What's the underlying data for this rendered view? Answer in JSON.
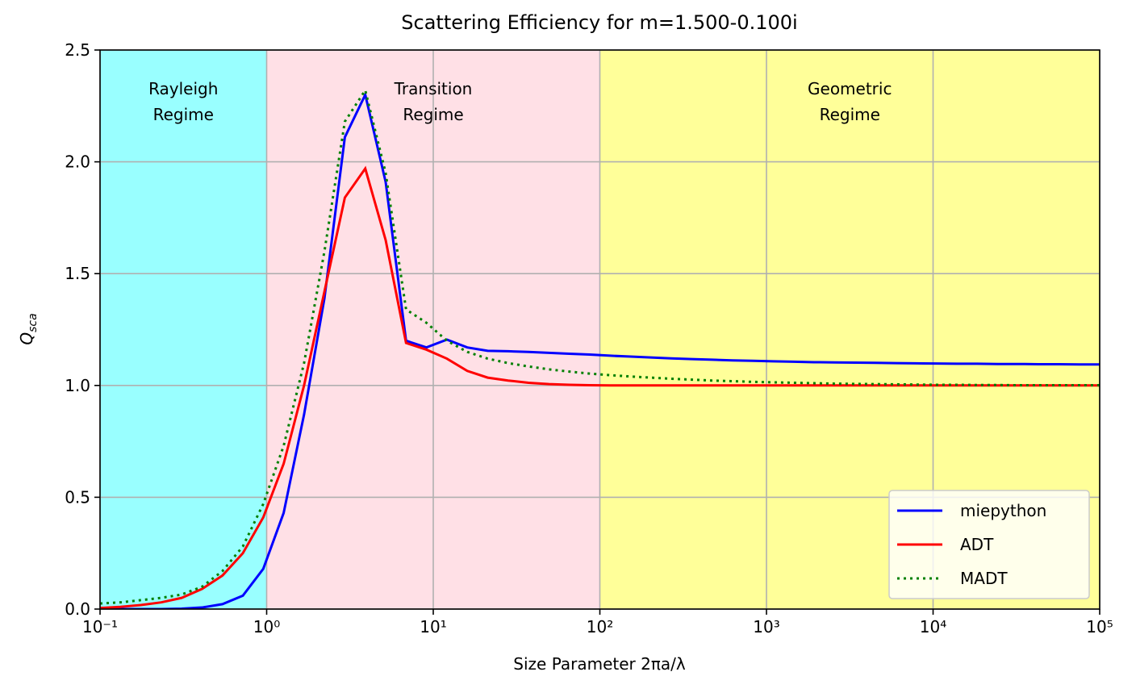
{
  "chart_data": {
    "type": "line",
    "title": "Scattering Efficiency for m=1.500-0.100i",
    "xlabel": "Size Parameter 2πa/λ",
    "ylabel": {
      "main": "Q",
      "sub": "sca"
    },
    "xscale": "log",
    "grid": true,
    "legend": "lower right",
    "xlim": [
      0.1,
      100000
    ],
    "ylim": [
      0,
      2.5
    ],
    "xticks": [
      {
        "value": 0.1,
        "label": "10⁻¹"
      },
      {
        "value": 1,
        "label": "10⁰"
      },
      {
        "value": 10,
        "label": "10¹"
      },
      {
        "value": 100,
        "label": "10²"
      },
      {
        "value": 1000,
        "label": "10³"
      },
      {
        "value": 10000,
        "label": "10⁴"
      },
      {
        "value": 100000,
        "label": "10⁵"
      }
    ],
    "yticks": [
      {
        "value": 0,
        "label": "0.0"
      },
      0.5,
      {
        "value": 1,
        "label": "1.0"
      },
      1.5,
      {
        "value": 2,
        "label": "2.0"
      },
      2.5
    ],
    "regions": [
      {
        "range": [
          0.1,
          1
        ],
        "color": "#99ffff",
        "label": [
          "Rayleigh",
          "Regime"
        ]
      },
      {
        "range": [
          1,
          100
        ],
        "color": "#ffe0e6",
        "label": [
          "Transition",
          "Regime"
        ]
      },
      {
        "range": [
          100,
          100000
        ],
        "color": "#ffff99",
        "label": [
          "Geometric",
          "Regime"
        ]
      }
    ],
    "x": [
      0.1,
      0.1326,
      0.1758,
      0.233,
      0.3089,
      0.4095,
      0.5429,
      0.7197,
      0.9541,
      1.265,
      1.677,
      2.223,
      2.947,
      3.907,
      5.179,
      6.866,
      9.103,
      12.07,
      16.0,
      21.21,
      28.12,
      37.28,
      49.42,
      65.51,
      86.85,
      115.1,
      152.6,
      202.4,
      268.3,
      355.6,
      471.5,
      625.1,
      828.6,
      1099,
      1456,
      1931,
      2560,
      3393,
      4498,
      5964,
      7906,
      10481,
      13895,
      18421,
      24421,
      32375,
      42919,
      56899,
      75431,
      100000
    ],
    "series": [
      {
        "name": "miepython",
        "color": "#0000ff",
        "linestyle": "solid",
        "values": [
          0,
          0,
          0,
          0,
          0.002,
          0.007,
          0.022,
          0.06,
          0.18,
          0.43,
          0.87,
          1.39,
          2.11,
          2.3,
          1.91,
          1.2,
          1.17,
          1.205,
          1.17,
          1.155,
          1.153,
          1.15,
          1.146,
          1.142,
          1.138,
          1.133,
          1.129,
          1.125,
          1.121,
          1.118,
          1.115,
          1.112,
          1.11,
          1.108,
          1.106,
          1.104,
          1.103,
          1.102,
          1.101,
          1.1,
          1.099,
          1.098,
          1.097,
          1.097,
          1.096,
          1.096,
          1.095,
          1.095,
          1.094,
          1.094
        ]
      },
      {
        "name": "ADT",
        "color": "#ff0000",
        "linestyle": "solid",
        "values": [
          0.005,
          0.01,
          0.018,
          0.03,
          0.05,
          0.09,
          0.15,
          0.25,
          0.41,
          0.65,
          1.0,
          1.42,
          1.84,
          1.97,
          1.65,
          1.19,
          1.16,
          1.12,
          1.065,
          1.035,
          1.022,
          1.012,
          1.006,
          1.003,
          1.001,
          1,
          1,
          1,
          1,
          1,
          1,
          1,
          1,
          1,
          1,
          1,
          1,
          1,
          1,
          1,
          1,
          1,
          1,
          1,
          1,
          1,
          1,
          1,
          1,
          1
        ]
      },
      {
        "name": "MADT",
        "color": "#008000",
        "linestyle": "dotted",
        "values": [
          0.025,
          0.03,
          0.04,
          0.05,
          0.065,
          0.1,
          0.17,
          0.28,
          0.47,
          0.73,
          1.1,
          1.6,
          2.18,
          2.32,
          1.95,
          1.34,
          1.28,
          1.2,
          1.15,
          1.12,
          1.1,
          1.085,
          1.072,
          1.062,
          1.053,
          1.046,
          1.04,
          1.035,
          1.03,
          1.026,
          1.022,
          1.019,
          1.016,
          1.014,
          1.012,
          1.01,
          1.008,
          1.007,
          1.006,
          1.005,
          1.004,
          1.003,
          1.003,
          1.002,
          1.002,
          1.001,
          1.001,
          1.001,
          1.001,
          1.001
        ]
      }
    ]
  }
}
